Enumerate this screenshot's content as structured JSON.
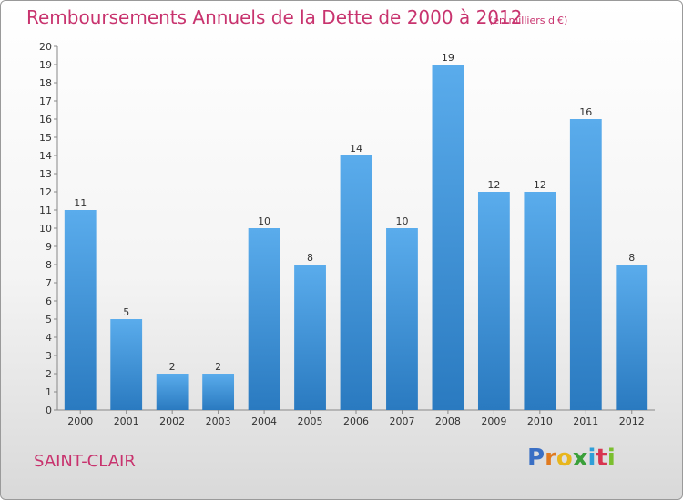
{
  "title": "Remboursements Annuels de la Dette de 2000 à 2012",
  "subtitle": "(en milliers d'€)",
  "city": "SAINT-CLAIR",
  "logo": {
    "letters": [
      "P",
      "r",
      "o",
      "x",
      "i",
      "t",
      "i"
    ],
    "colors": [
      "#3a6fc4",
      "#e07a1f",
      "#e8b61c",
      "#3aa03a",
      "#2f9fd8",
      "#d8344f",
      "#7bbf2f"
    ]
  },
  "colors": {
    "bar_top": "#5aacec",
    "bar_bottom": "#2a7ac0",
    "text": "#c8336e"
  },
  "chart_data": {
    "type": "bar",
    "categories": [
      "2000",
      "2001",
      "2002",
      "2003",
      "2004",
      "2005",
      "2006",
      "2007",
      "2008",
      "2009",
      "2010",
      "2011",
      "2012"
    ],
    "values": [
      11,
      5,
      2,
      2,
      10,
      8,
      14,
      10,
      19,
      12,
      12,
      16,
      8
    ],
    "ylim": [
      0,
      20
    ],
    "yticks": [
      0,
      1,
      2,
      3,
      4,
      5,
      6,
      7,
      8,
      9,
      10,
      11,
      12,
      13,
      14,
      15,
      16,
      17,
      18,
      19,
      20
    ],
    "grid": false,
    "legend": "none"
  }
}
